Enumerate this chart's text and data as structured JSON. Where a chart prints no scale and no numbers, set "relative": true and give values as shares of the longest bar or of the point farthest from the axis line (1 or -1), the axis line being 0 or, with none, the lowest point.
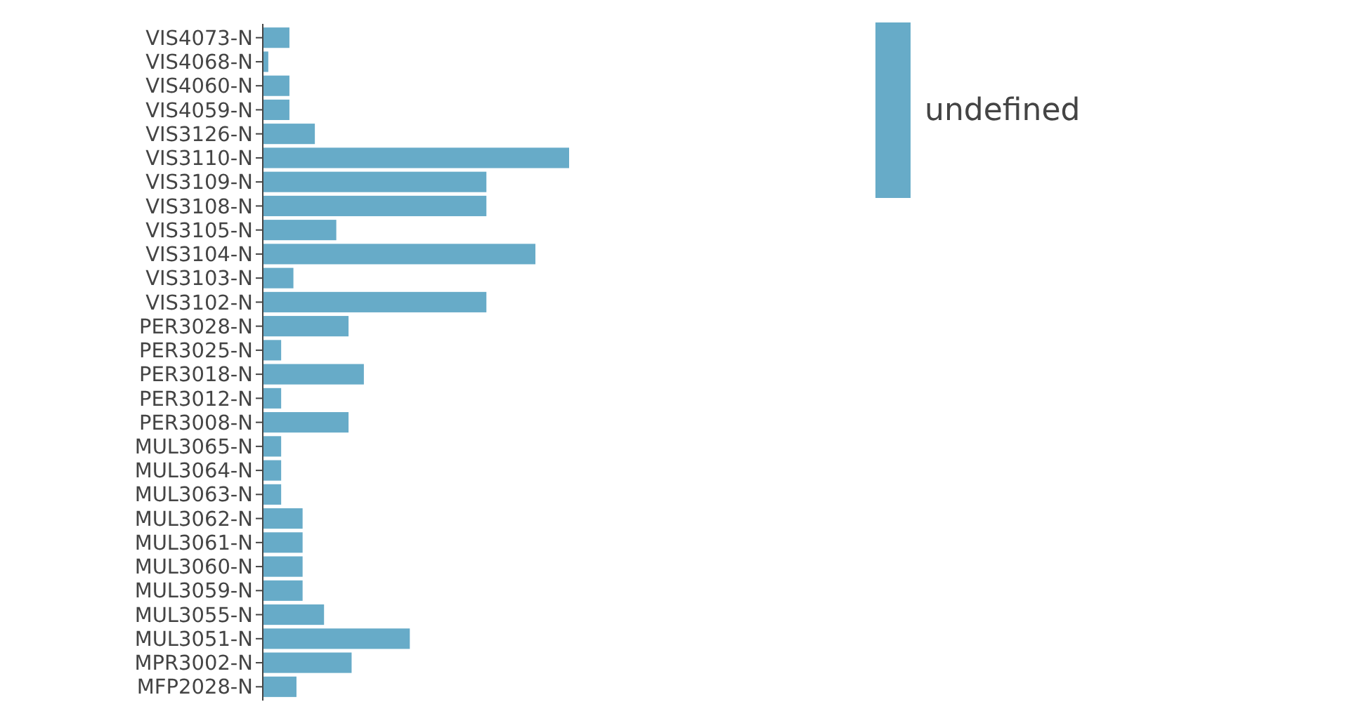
{
  "chart_data": {
    "type": "bar",
    "orientation": "horizontal",
    "relative": true,
    "legend": "top right",
    "categories": [
      "VIS4073-N",
      "VIS4068-N",
      "VIS4060-N",
      "VIS4059-N",
      "VIS3126-N",
      "VIS3110-N",
      "VIS3109-N",
      "VIS3108-N",
      "VIS3105-N",
      "VIS3104-N",
      "VIS3103-N",
      "VIS3102-N",
      "PER3028-N",
      "PER3025-N",
      "PER3018-N",
      "PER3012-N",
      "PER3008-N",
      "MUL3065-N",
      "MUL3064-N",
      "MUL3063-N",
      "MUL3062-N",
      "MUL3061-N",
      "MUL3060-N",
      "MUL3059-N",
      "MUL3055-N",
      "MUL3051-N",
      "MPR3002-N",
      "MFP2028-N"
    ],
    "series": [
      {
        "name": "undefined",
        "color": "#67abc8",
        "values": [
          0.087,
          0.018,
          0.087,
          0.087,
          0.17,
          1,
          0.73,
          0.73,
          0.24,
          0.89,
          0.1,
          0.73,
          0.28,
          0.06,
          0.33,
          0.06,
          0.28,
          0.06,
          0.06,
          0.06,
          0.13,
          0.13,
          0.13,
          0.13,
          0.2,
          0.48,
          0.29,
          0.11
        ]
      }
    ]
  }
}
